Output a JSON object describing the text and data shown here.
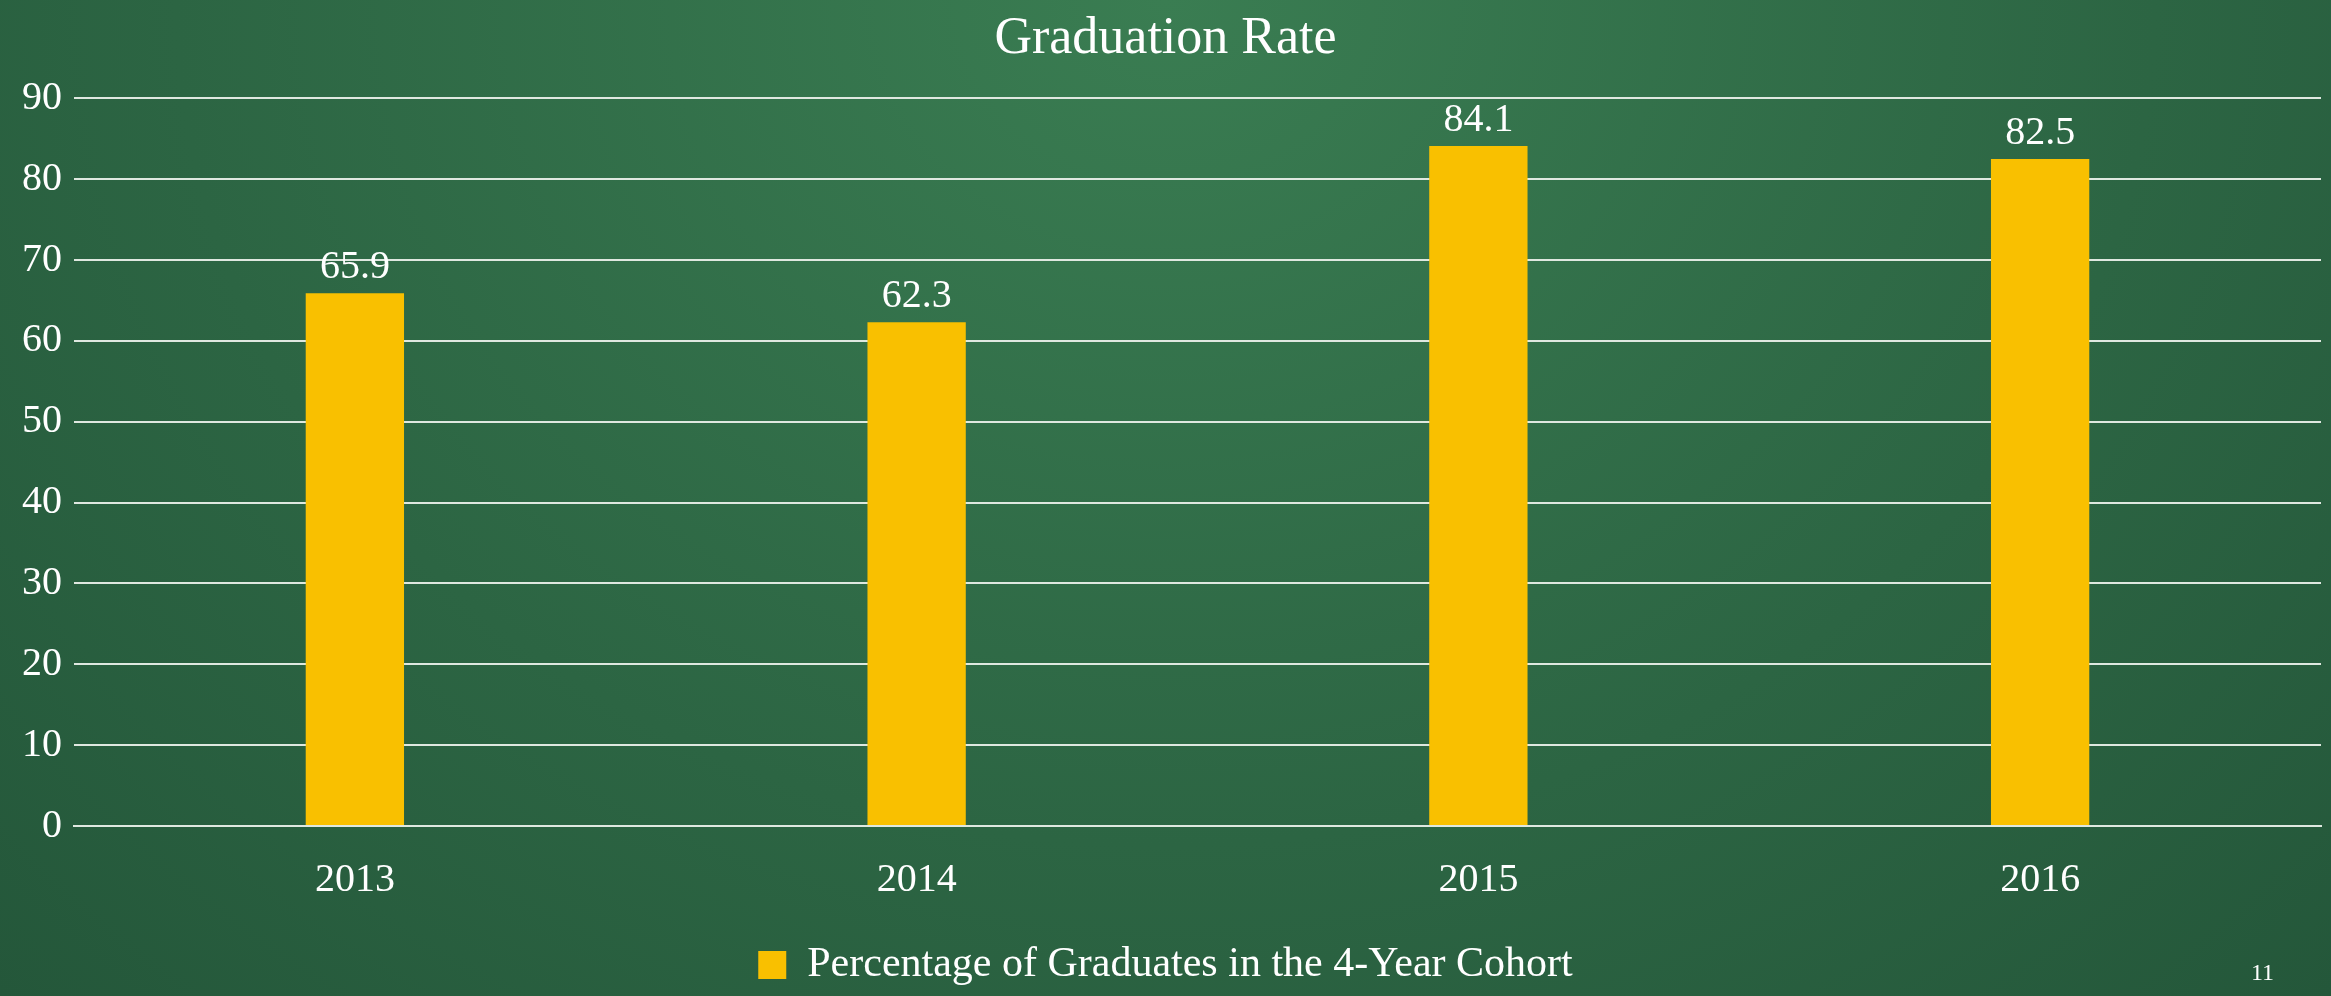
{
  "chart_data": {
    "type": "bar",
    "title": "Graduation Rate",
    "categories": [
      "2013",
      "2014",
      "2015",
      "2016"
    ],
    "series": [
      {
        "name": "Percentage of Graduates in the 4-Year Cohort",
        "color": "#f9c000",
        "values": [
          65.9,
          62.3,
          84.1,
          82.5
        ]
      }
    ],
    "ylim": [
      0,
      90
    ],
    "yticks": [
      0,
      10,
      20,
      30,
      40,
      50,
      60,
      70,
      80,
      90
    ],
    "grid": "y",
    "legend": "bottom",
    "data_labels": true,
    "annotations": [
      "11"
    ]
  }
}
